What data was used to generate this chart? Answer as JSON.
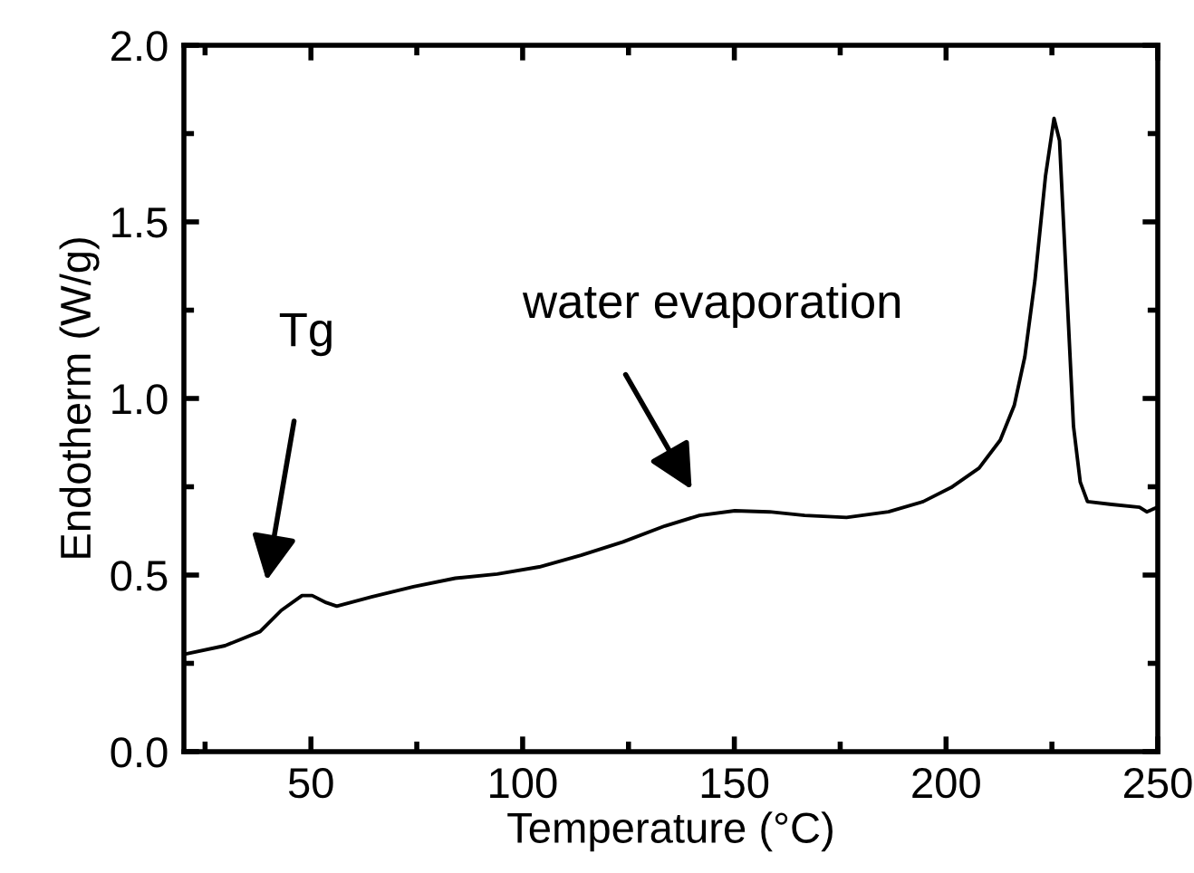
{
  "chart_data": {
    "type": "line",
    "xlabel": "Temperature (°C)",
    "ylabel": "Endotherm (W/g)",
    "xlim": [
      20,
      250
    ],
    "ylim": [
      0,
      2.0
    ],
    "xticks": [
      {
        "value": 25,
        "label": null
      },
      50,
      {
        "value": 75,
        "label": null
      },
      100,
      {
        "value": 125,
        "label": null
      },
      150,
      {
        "value": 175,
        "label": null
      },
      200,
      {
        "value": 225,
        "label": null
      },
      250
    ],
    "yticks": [
      {
        "value": 0,
        "label": "0.0"
      },
      {
        "value": 0.25,
        "label": null
      },
      0.5,
      {
        "value": 0.75,
        "label": null
      },
      {
        "value": 1,
        "label": "1.0"
      },
      {
        "value": 1.25,
        "label": null
      },
      1.5,
      {
        "value": 1.75,
        "label": null
      },
      {
        "value": 2,
        "label": "2.0"
      }
    ],
    "grid": false,
    "legend": false,
    "marker": "none",
    "line_style": "solid",
    "series": [
      {
        "color": "#000000",
        "x": [
          20.2,
          29.7,
          38,
          43,
          47.9,
          50.3,
          53.6,
          56.1,
          64.3,
          74.2,
          84.1,
          94,
          103.9,
          113.8,
          123.7,
          133.6,
          141.8,
          150.1,
          158.3,
          166.6,
          176.5,
          186.4,
          194.6,
          201.2,
          207.8,
          212.8,
          216.1,
          218.6,
          221,
          223.5,
          225.5,
          226.8,
          228.4,
          230.1,
          231.7,
          233.4,
          239.1,
          245.7,
          247.4,
          249.9
        ],
        "values": [
          0.276,
          0.3,
          0.34,
          0.4,
          0.442,
          0.442,
          0.422,
          0.412,
          0.438,
          0.467,
          0.491,
          0.503,
          0.523,
          0.556,
          0.594,
          0.639,
          0.669,
          0.682,
          0.679,
          0.669,
          0.663,
          0.679,
          0.708,
          0.748,
          0.803,
          0.882,
          0.98,
          1.118,
          1.335,
          1.631,
          1.793,
          1.73,
          1.335,
          0.921,
          0.763,
          0.708,
          0.7,
          0.692,
          0.679,
          0.692
        ]
      }
    ],
    "annotations": [
      "Tg",
      "water evaporation"
    ]
  }
}
